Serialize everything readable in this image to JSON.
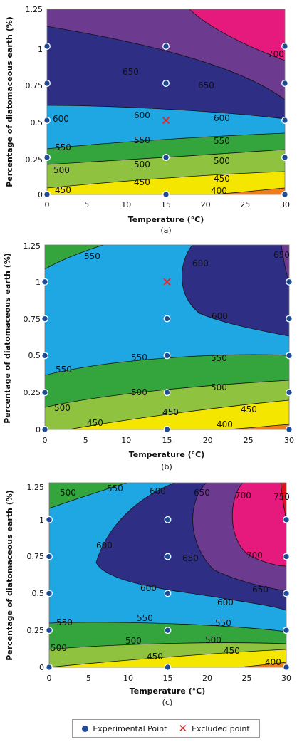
{
  "colors": {
    "c1": "#f5e600",
    "c2": "#8fc23f",
    "c3": "#34a43d",
    "c4": "#1ea7e2",
    "c5": "#2e2e84",
    "c6": "#6c3a8f",
    "c7": "#e6197d",
    "c8": "#e0101a",
    "c0": "#ef7d1a",
    "point": "#1d4b94",
    "excluded": "#e0242a"
  },
  "legend": {
    "experimental_label": "Experimental Point",
    "excluded_label": "Excluded point"
  },
  "chart_data": [
    {
      "type": "contour",
      "caption": "(a)",
      "xlabel": "Temperature (°C)",
      "ylabel": "Percentage of diatomaceous earth (%)",
      "xlim": [
        0,
        30
      ],
      "ylim": [
        0,
        1.25
      ],
      "xticks": [
        "0",
        "5",
        "10",
        "15",
        "20",
        "25",
        "30"
      ],
      "yticks": [
        "0",
        "0.25",
        "0.5",
        "0.75",
        "1",
        "1.25"
      ],
      "levels": [
        400,
        450,
        500,
        550,
        600,
        650,
        700
      ],
      "contours": [
        {
          "level": 400,
          "x": [
            20,
            30
          ],
          "y": [
            0,
            0.045
          ]
        },
        {
          "level": 450,
          "x": [
            0,
            30
          ],
          "y": [
            0.045,
            0.155
          ]
        },
        {
          "level": 500,
          "x": [
            0,
            30
          ],
          "y": [
            0.2,
            0.3
          ]
        },
        {
          "level": 550,
          "x": [
            0,
            30
          ],
          "y": [
            0.37,
            0.45
          ]
        },
        {
          "level": 600,
          "x": [
            0,
            30
          ],
          "y": [
            0.65,
            0.5
          ]
        },
        {
          "level": 650,
          "x": [
            0,
            30
          ],
          "y": [
            1.15,
            0.72
          ]
        },
        {
          "level": 700,
          "x": [
            18,
            30
          ],
          "y": [
            1.25,
            0.9
          ]
        }
      ],
      "experimental_points": [
        {
          "x": 0,
          "y": 0
        },
        {
          "x": 0,
          "y": 0.25
        },
        {
          "x": 0,
          "y": 0.5
        },
        {
          "x": 0,
          "y": 0.75
        },
        {
          "x": 0,
          "y": 1
        },
        {
          "x": 15,
          "y": 0
        },
        {
          "x": 15,
          "y": 0.25
        },
        {
          "x": 15,
          "y": 0.75
        },
        {
          "x": 15,
          "y": 1
        },
        {
          "x": 30,
          "y": 0
        },
        {
          "x": 30,
          "y": 0.25
        },
        {
          "x": 30,
          "y": 0.5
        },
        {
          "x": 30,
          "y": 0.75
        },
        {
          "x": 30,
          "y": 1
        }
      ],
      "excluded_points": [
        {
          "x": 15,
          "y": 0.5
        }
      ]
    },
    {
      "type": "contour",
      "caption": "(b)",
      "xlabel": "Temperature (°C)",
      "ylabel": "Percentage of diatomaceous earth (%)",
      "xlim": [
        0,
        30
      ],
      "ylim": [
        0,
        1.25
      ],
      "xticks": [
        "0",
        "5",
        "10",
        "15",
        "20",
        "25",
        "30"
      ],
      "yticks": [
        "0",
        "0.25",
        "0.5",
        "0.75",
        "1",
        "1.25"
      ],
      "levels": [
        400,
        450,
        500,
        550,
        600,
        650
      ],
      "contours": [
        {
          "level": 400,
          "x": [
            22,
            30
          ],
          "y": [
            0,
            0.03
          ]
        },
        {
          "level": 450,
          "x": [
            3,
            30
          ],
          "y": [
            0,
            0.2
          ]
        },
        {
          "level": 500,
          "x": [
            0,
            30
          ],
          "y": [
            0.15,
            0.33
          ]
        },
        {
          "level": 550,
          "x": [
            0,
            30
          ],
          "y": [
            0.37,
            0.5
          ]
        },
        {
          "level": 550,
          "x": [
            0,
            5
          ],
          "y": [
            1.07,
            1.25
          ]
        },
        {
          "level": 600,
          "x": [
            19,
            30
          ],
          "y": [
            1.25,
            0.65
          ]
        },
        {
          "level": 650,
          "x": [
            29,
            30
          ],
          "y": [
            1.25,
            0.95
          ]
        }
      ],
      "experimental_points": [
        {
          "x": 0,
          "y": 0
        },
        {
          "x": 0,
          "y": 0.25
        },
        {
          "x": 0,
          "y": 0.5
        },
        {
          "x": 0,
          "y": 0.75
        },
        {
          "x": 0,
          "y": 1
        },
        {
          "x": 15,
          "y": 0
        },
        {
          "x": 15,
          "y": 0.25
        },
        {
          "x": 15,
          "y": 0.5
        },
        {
          "x": 15,
          "y": 0.75
        },
        {
          "x": 30,
          "y": 0
        },
        {
          "x": 30,
          "y": 0.25
        },
        {
          "x": 30,
          "y": 0.5
        },
        {
          "x": 30,
          "y": 0.75
        },
        {
          "x": 30,
          "y": 1
        }
      ],
      "excluded_points": [
        {
          "x": 15,
          "y": 1
        }
      ]
    },
    {
      "type": "contour",
      "caption": "(c)",
      "xlabel": "Temperature (°C)",
      "ylabel": "Percentage of diatomaceous earth (%)",
      "xlim": [
        0,
        30
      ],
      "ylim": [
        0,
        1.25
      ],
      "xticks": [
        "0",
        "5",
        "10",
        "15",
        "20",
        "25",
        "30"
      ],
      "yticks": [
        "0",
        "0.25",
        "0.5",
        "0.75",
        "1",
        "1.25"
      ],
      "levels": [
        400,
        450,
        500,
        550,
        600,
        650,
        700,
        750
      ],
      "contours": [
        {
          "level": 400,
          "x": [
            24,
            30
          ],
          "y": [
            0,
            0.03
          ]
        },
        {
          "level": 450,
          "x": [
            0,
            30
          ],
          "y": [
            0,
            0.12
          ]
        },
        {
          "level": 500,
          "x": [
            0,
            30
          ],
          "y": [
            0.12,
            0.2
          ]
        },
        {
          "level": 550,
          "x": [
            0,
            30
          ],
          "y": [
            0.3,
            0.36
          ]
        },
        {
          "level": 550,
          "x": [
            0,
            10
          ],
          "y": [
            1.03,
            1.25
          ]
        },
        {
          "level": 600,
          "x": [
            6,
            30
          ],
          "y": [
            0.85,
            0.55
          ]
        },
        {
          "level": 650,
          "x": [
            18,
            30
          ],
          "y": [
            1.25,
            0.62
          ]
        },
        {
          "level": 700,
          "x": [
            23,
            30
          ],
          "y": [
            1.25,
            0.8
          ]
        },
        {
          "level": 750,
          "x": [
            29,
            30
          ],
          "y": [
            1.25,
            1.0
          ]
        }
      ],
      "experimental_points": [
        {
          "x": 0,
          "y": 0
        },
        {
          "x": 0,
          "y": 0.25
        },
        {
          "x": 0,
          "y": 0.5
        },
        {
          "x": 0,
          "y": 0.75
        },
        {
          "x": 0,
          "y": 1
        },
        {
          "x": 15,
          "y": 0
        },
        {
          "x": 15,
          "y": 0.25
        },
        {
          "x": 15,
          "y": 0.5
        },
        {
          "x": 15,
          "y": 0.75
        },
        {
          "x": 15,
          "y": 1
        },
        {
          "x": 30,
          "y": 0
        },
        {
          "x": 30,
          "y": 0.25
        },
        {
          "x": 30,
          "y": 0.5
        },
        {
          "x": 30,
          "y": 0.75
        },
        {
          "x": 30,
          "y": 1
        }
      ],
      "excluded_points": []
    }
  ]
}
